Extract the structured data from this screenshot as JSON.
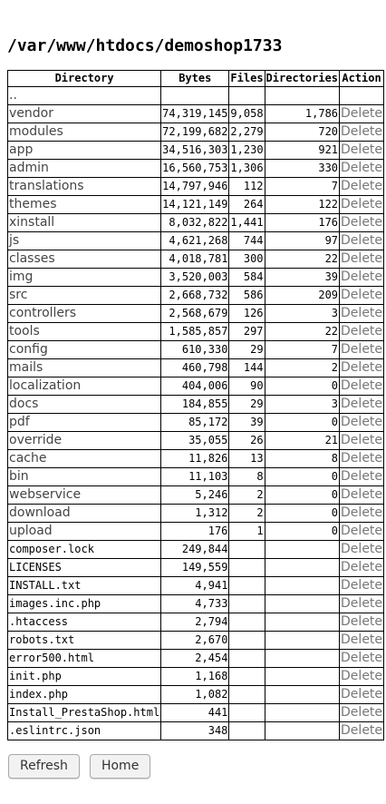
{
  "path": "/var/www/htdocs/demoshop1733",
  "headers": [
    "Directory",
    "Bytes",
    "Files",
    "Directories",
    "Action"
  ],
  "parent_link": "..",
  "action_label": "Delete",
  "rows": [
    {
      "name": "vendor",
      "bytes": "74,319,145",
      "files": "9,058",
      "dirs": "1,786",
      "dir": true
    },
    {
      "name": "modules",
      "bytes": "72,199,682",
      "files": "2,279",
      "dirs": "720",
      "dir": true
    },
    {
      "name": "app",
      "bytes": "34,516,303",
      "files": "1,230",
      "dirs": "921",
      "dir": true
    },
    {
      "name": "admin",
      "bytes": "16,560,753",
      "files": "1,306",
      "dirs": "330",
      "dir": true
    },
    {
      "name": "translations",
      "bytes": "14,797,946",
      "files": "112",
      "dirs": "7",
      "dir": true
    },
    {
      "name": "themes",
      "bytes": "14,121,149",
      "files": "264",
      "dirs": "122",
      "dir": true
    },
    {
      "name": "xinstall",
      "bytes": "8,032,822",
      "files": "1,441",
      "dirs": "176",
      "dir": true
    },
    {
      "name": "js",
      "bytes": "4,621,268",
      "files": "744",
      "dirs": "97",
      "dir": true
    },
    {
      "name": "classes",
      "bytes": "4,018,781",
      "files": "300",
      "dirs": "22",
      "dir": true
    },
    {
      "name": "img",
      "bytes": "3,520,003",
      "files": "584",
      "dirs": "39",
      "dir": true
    },
    {
      "name": "src",
      "bytes": "2,668,732",
      "files": "586",
      "dirs": "209",
      "dir": true
    },
    {
      "name": "controllers",
      "bytes": "2,568,679",
      "files": "126",
      "dirs": "3",
      "dir": true
    },
    {
      "name": "tools",
      "bytes": "1,585,857",
      "files": "297",
      "dirs": "22",
      "dir": true
    },
    {
      "name": "config",
      "bytes": "610,330",
      "files": "29",
      "dirs": "7",
      "dir": true
    },
    {
      "name": "mails",
      "bytes": "460,798",
      "files": "144",
      "dirs": "2",
      "dir": true
    },
    {
      "name": "localization",
      "bytes": "404,006",
      "files": "90",
      "dirs": "0",
      "dir": true
    },
    {
      "name": "docs",
      "bytes": "184,855",
      "files": "29",
      "dirs": "3",
      "dir": true
    },
    {
      "name": "pdf",
      "bytes": "85,172",
      "files": "39",
      "dirs": "0",
      "dir": true
    },
    {
      "name": "override",
      "bytes": "35,055",
      "files": "26",
      "dirs": "21",
      "dir": true
    },
    {
      "name": "cache",
      "bytes": "11,826",
      "files": "13",
      "dirs": "8",
      "dir": true
    },
    {
      "name": "bin",
      "bytes": "11,103",
      "files": "8",
      "dirs": "0",
      "dir": true
    },
    {
      "name": "webservice",
      "bytes": "5,246",
      "files": "2",
      "dirs": "0",
      "dir": true
    },
    {
      "name": "download",
      "bytes": "1,312",
      "files": "2",
      "dirs": "0",
      "dir": true
    },
    {
      "name": "upload",
      "bytes": "176",
      "files": "1",
      "dirs": "0",
      "dir": true
    },
    {
      "name": "composer.lock",
      "bytes": "249,844",
      "files": "",
      "dirs": "",
      "dir": false
    },
    {
      "name": "LICENSES",
      "bytes": "149,559",
      "files": "",
      "dirs": "",
      "dir": false
    },
    {
      "name": "INSTALL.txt",
      "bytes": "4,941",
      "files": "",
      "dirs": "",
      "dir": false
    },
    {
      "name": "images.inc.php",
      "bytes": "4,733",
      "files": "",
      "dirs": "",
      "dir": false
    },
    {
      "name": ".htaccess",
      "bytes": "2,794",
      "files": "",
      "dirs": "",
      "dir": false
    },
    {
      "name": "robots.txt",
      "bytes": "2,670",
      "files": "",
      "dirs": "",
      "dir": false
    },
    {
      "name": "error500.html",
      "bytes": "2,454",
      "files": "",
      "dirs": "",
      "dir": false
    },
    {
      "name": "init.php",
      "bytes": "1,168",
      "files": "",
      "dirs": "",
      "dir": false
    },
    {
      "name": "index.php",
      "bytes": "1,082",
      "files": "",
      "dirs": "",
      "dir": false
    },
    {
      "name": "Install_PrestaShop.html",
      "bytes": "441",
      "files": "",
      "dirs": "",
      "dir": false
    },
    {
      "name": ".eslintrc.json",
      "bytes": "348",
      "files": "",
      "dirs": "",
      "dir": false
    }
  ],
  "buttons": {
    "refresh": "Refresh",
    "home": "Home"
  }
}
